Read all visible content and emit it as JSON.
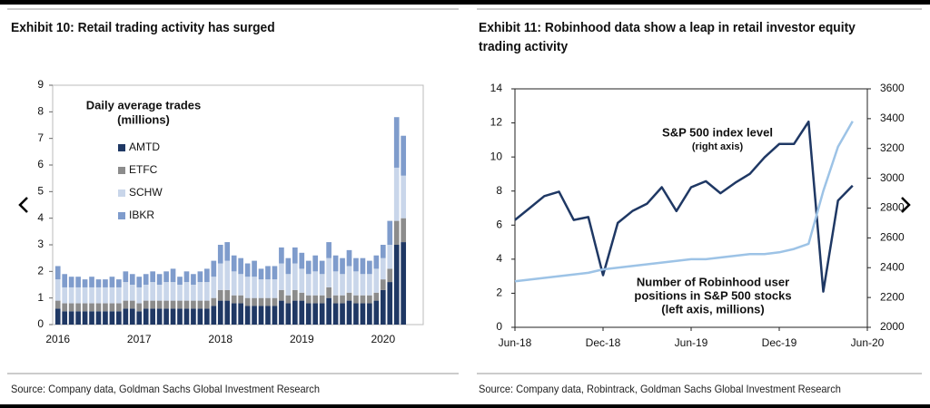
{
  "chart_data": [
    {
      "type": "bar",
      "stacked": true,
      "title": "Exhibit 10: Retail trading activity has surged",
      "source": "Source: Company data, Goldman Sachs Global Investment Research",
      "legend_title": [
        "Daily average trades",
        "(millions)"
      ],
      "legend": "upper-left",
      "categories": [
        "2016",
        null,
        null,
        null,
        null,
        null,
        null,
        null,
        null,
        null,
        null,
        null,
        "2017",
        null,
        null,
        null,
        null,
        null,
        null,
        null,
        null,
        null,
        null,
        null,
        "2018",
        null,
        null,
        null,
        null,
        null,
        null,
        null,
        null,
        null,
        null,
        null,
        "2019",
        null,
        null,
        null,
        null,
        null,
        null,
        null,
        null,
        null,
        null,
        null,
        "2020",
        null,
        null,
        null
      ],
      "series": [
        {
          "name": "AMTD",
          "color": "#1f3864",
          "values": [
            0.6,
            0.5,
            0.5,
            0.5,
            0.5,
            0.5,
            0.5,
            0.5,
            0.5,
            0.5,
            0.6,
            0.6,
            0.5,
            0.6,
            0.6,
            0.6,
            0.6,
            0.6,
            0.6,
            0.6,
            0.6,
            0.6,
            0.6,
            0.7,
            0.9,
            0.9,
            0.8,
            0.8,
            0.7,
            0.7,
            0.7,
            0.7,
            0.7,
            0.9,
            0.8,
            0.9,
            0.9,
            0.8,
            0.8,
            0.8,
            1.0,
            0.8,
            0.8,
            0.9,
            0.8,
            0.8,
            0.8,
            0.9,
            1.3,
            1.6,
            3.0,
            3.1
          ]
        },
        {
          "name": "ETFC",
          "color": "#8c8c8c",
          "values": [
            0.3,
            0.3,
            0.3,
            0.3,
            0.3,
            0.3,
            0.3,
            0.3,
            0.3,
            0.3,
            0.3,
            0.3,
            0.3,
            0.3,
            0.3,
            0.3,
            0.3,
            0.3,
            0.3,
            0.3,
            0.3,
            0.3,
            0.3,
            0.3,
            0.4,
            0.4,
            0.3,
            0.3,
            0.3,
            0.3,
            0.3,
            0.3,
            0.3,
            0.4,
            0.3,
            0.4,
            0.3,
            0.3,
            0.3,
            0.3,
            0.4,
            0.3,
            0.3,
            0.3,
            0.3,
            0.3,
            0.3,
            0.3,
            0.4,
            0.5,
            0.9,
            0.9
          ]
        },
        {
          "name": "SCHW",
          "color": "#c9d6ea",
          "values": [
            0.8,
            0.6,
            0.6,
            0.6,
            0.6,
            0.6,
            0.6,
            0.6,
            0.6,
            0.6,
            0.7,
            0.6,
            0.6,
            0.6,
            0.7,
            0.6,
            0.7,
            0.7,
            0.6,
            0.7,
            0.6,
            0.7,
            0.7,
            0.8,
            1.0,
            1.1,
            0.9,
            0.8,
            0.8,
            0.8,
            0.7,
            0.7,
            0.7,
            1.0,
            0.8,
            1.0,
            0.9,
            0.8,
            0.9,
            0.8,
            1.1,
            0.9,
            0.8,
            1.0,
            0.9,
            0.8,
            0.8,
            0.9,
            0.8,
            0.9,
            2.0,
            1.6
          ]
        },
        {
          "name": "IBKR",
          "color": "#7f9ccc",
          "values": [
            0.5,
            0.5,
            0.4,
            0.4,
            0.3,
            0.4,
            0.3,
            0.3,
            0.4,
            0.3,
            0.4,
            0.4,
            0.4,
            0.4,
            0.4,
            0.4,
            0.4,
            0.5,
            0.3,
            0.4,
            0.4,
            0.4,
            0.5,
            0.6,
            0.7,
            0.7,
            0.6,
            0.6,
            0.5,
            0.6,
            0.4,
            0.5,
            0.5,
            0.6,
            0.6,
            0.6,
            0.6,
            0.5,
            0.6,
            0.5,
            0.6,
            0.6,
            0.6,
            0.6,
            0.5,
            0.6,
            0.5,
            0.5,
            0.5,
            0.9,
            1.9,
            1.5
          ]
        }
      ],
      "ylim": [
        0,
        9
      ],
      "yticks": [
        0,
        1,
        2,
        3,
        4,
        5,
        6,
        7,
        8,
        9
      ],
      "grid": false
    },
    {
      "type": "line",
      "title": "Exhibit 11: Robinhood data show a leap in retail investor equity trading activity",
      "source": "Source: Company data, Robintrack, Goldman Sachs Global Investment Research",
      "x": [
        "Jun-18",
        "Jul-18",
        "Aug-18",
        "Sep-18",
        "Oct-18",
        "Nov-18",
        "Dec-18",
        "Jan-19",
        "Feb-19",
        "Mar-19",
        "Apr-19",
        "May-19",
        "Jun-19",
        "Jul-19",
        "Aug-19",
        "Sep-19",
        "Oct-19",
        "Nov-19",
        "Dec-19",
        "Jan-20",
        "Feb-20",
        "Mar-20",
        "Apr-20",
        "May-20",
        "Jun-20"
      ],
      "xticks": [
        "Jun-18",
        "Dec-18",
        "Jun-19",
        "Dec-19",
        "Jun-20"
      ],
      "ylim": [
        0,
        14
      ],
      "yticks": [
        0,
        2,
        4,
        6,
        8,
        10,
        12,
        14
      ],
      "y2lim": [
        2000,
        3600
      ],
      "y2ticks": [
        2000,
        2200,
        2400,
        2600,
        2800,
        3000,
        3200,
        3400,
        3600
      ],
      "series": [
        {
          "label_lines": [
            "S&P 500 index level",
            "(right axis)"
          ],
          "axis": "y2",
          "color": "#1f3864",
          "values": [
            2720,
            2800,
            2880,
            2910,
            2720,
            2740,
            2350,
            2700,
            2780,
            2830,
            2940,
            2780,
            2940,
            2980,
            2900,
            2970,
            3030,
            3140,
            3230,
            3230,
            3380,
            2240,
            2850,
            2950,
            null
          ]
        },
        {
          "label_lines": [
            "Number of Robinhood user",
            "positions in S&P 500 stocks",
            "(left axis, millions)"
          ],
          "color": "#9dc3e6",
          "values": [
            2.7,
            2.8,
            2.9,
            3.0,
            3.1,
            3.2,
            3.4,
            3.5,
            3.6,
            3.7,
            3.8,
            3.9,
            4.0,
            4.0,
            4.1,
            4.2,
            4.3,
            4.3,
            4.4,
            4.6,
            4.9,
            8.0,
            10.6,
            12.1,
            null
          ]
        }
      ],
      "grid": false
    }
  ]
}
